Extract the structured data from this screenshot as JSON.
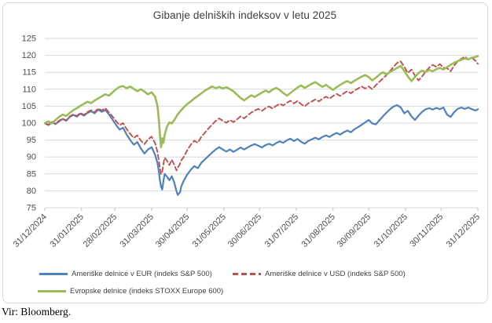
{
  "source_note": "Vir: Bloomberg.",
  "chart_data": {
    "type": "line",
    "title": "Gibanje delniških indeksov v letu 2025",
    "xlabel": "",
    "ylabel": "",
    "ylim": [
      75,
      125
    ],
    "y_ticks": [
      75,
      80,
      85,
      90,
      95,
      100,
      105,
      110,
      115,
      120,
      125
    ],
    "grid": "horizontal",
    "legend_position": "bottom",
    "x_unit": "days since 31/12/2024",
    "xlim_days": [
      0,
      365
    ],
    "x_tick_days": [
      0,
      31,
      59,
      90,
      120,
      151,
      181,
      212,
      243,
      273,
      304,
      334,
      365
    ],
    "x_tick_labels": [
      "31/12/2024",
      "31/01/2025",
      "28/02/2025",
      "31/03/2025",
      "30/04/2025",
      "31/05/2025",
      "30/06/2025",
      "31/07/2025",
      "31/08/2025",
      "30/09/2025",
      "31/10/2025",
      "30/11/2025",
      "31/12/2025"
    ],
    "base_value": 100,
    "days": [
      0,
      3,
      6,
      9,
      12,
      15,
      18,
      21,
      24,
      27,
      30,
      33,
      36,
      39,
      42,
      45,
      48,
      51,
      54,
      57,
      60,
      63,
      66,
      69,
      72,
      75,
      78,
      81,
      84,
      87,
      90,
      93,
      95,
      96,
      97,
      98,
      99,
      100,
      101,
      103,
      105,
      107,
      109,
      111,
      112,
      114,
      115,
      117,
      120,
      123,
      126,
      129,
      132,
      135,
      138,
      141,
      144,
      147,
      150,
      153,
      156,
      159,
      162,
      165,
      168,
      171,
      174,
      177,
      180,
      183,
      186,
      189,
      192,
      195,
      198,
      201,
      204,
      207,
      210,
      213,
      216,
      219,
      222,
      225,
      228,
      231,
      234,
      237,
      240,
      243,
      246,
      249,
      252,
      255,
      258,
      261,
      264,
      267,
      270,
      273,
      276,
      279,
      282,
      285,
      288,
      291,
      294,
      297,
      300,
      303,
      306,
      309,
      312,
      315,
      318,
      321,
      324,
      327,
      330,
      333,
      336,
      339,
      342,
      345,
      348,
      351,
      354,
      357,
      360,
      363,
      365
    ],
    "series": [
      {
        "name": "Ameriške delnice v EUR (indeks S&P 500)",
        "color": "#4F81BD",
        "style": "solid",
        "width": 2.2,
        "values": [
          100,
          99.4,
          100.3,
          99.7,
          100.5,
          101.2,
          100.7,
          101.8,
          102.4,
          101.9,
          102.8,
          102.2,
          103,
          103.5,
          102.9,
          104,
          103.3,
          103.9,
          102.6,
          101.1,
          99.5,
          98.1,
          98.6,
          96.6,
          95,
          93.6,
          94.4,
          92.5,
          91,
          92.2,
          92.9,
          90.6,
          88.2,
          86,
          83.2,
          81.2,
          80.4,
          83,
          85,
          84.2,
          83.1,
          84.3,
          82.6,
          79.9,
          78.8,
          79.6,
          81.3,
          82.9,
          84.8,
          86.2,
          87.3,
          86.7,
          88.3,
          89.3,
          90.3,
          91.3,
          92.2,
          92.9,
          92.2,
          91.6,
          92.2,
          91.5,
          92.1,
          92.8,
          92.2,
          92.8,
          93.4,
          93.8,
          93.3,
          92.8,
          93.5,
          93.9,
          93.4,
          94.1,
          94.6,
          94.2,
          94.9,
          95.4,
          94.7,
          95.3,
          94.5,
          93.9,
          94.7,
          95.2,
          95.7,
          95.2,
          95.9,
          96.4,
          95.9,
          96.6,
          97.1,
          96.6,
          97.3,
          97.8,
          97.3,
          98.2,
          98.8,
          99.5,
          100.2,
          100.9,
          99.9,
          99.6,
          100.8,
          102,
          103.1,
          104.1,
          104.9,
          105.3,
          104.6,
          102.9,
          103.6,
          102,
          100.9,
          102.2,
          103.3,
          104.1,
          104.4,
          104,
          104.5,
          104.1,
          104.6,
          102.5,
          101.8,
          103.2,
          104.2,
          104.6,
          104.2,
          104.6,
          104.1,
          103.7,
          104.1
        ]
      },
      {
        "name": "Ameriške delnice v USD (indeks S&P 500)",
        "color": "#C0504D",
        "style": "dashed",
        "width": 1.9,
        "values": [
          100,
          99.5,
          100.4,
          99.8,
          100.7,
          101.3,
          100.8,
          102,
          102.6,
          102.1,
          103,
          102.4,
          103.3,
          103.8,
          103.2,
          104.3,
          103.7,
          104.4,
          103.2,
          102,
          100.6,
          99.4,
          100,
          98.2,
          96.8,
          95.6,
          96.4,
          94.8,
          93.8,
          95.2,
          96,
          94,
          91.5,
          89.2,
          86.8,
          84.9,
          85.6,
          88,
          89.8,
          88.9,
          87.6,
          89.2,
          87.8,
          86,
          86.8,
          88,
          89,
          89.9,
          92,
          93.6,
          94.8,
          94.2,
          96,
          97.2,
          98.4,
          99.6,
          100.6,
          101.4,
          100.7,
          100.1,
          100.9,
          100.3,
          101.1,
          102,
          101.4,
          102.3,
          103.1,
          103.7,
          104.2,
          103.6,
          104.4,
          104.9,
          104.3,
          105.1,
          105.7,
          105.2,
          106,
          106.6,
          105.8,
          106.5,
          105.6,
          104.9,
          105.8,
          106.4,
          107,
          106.4,
          107.2,
          107.8,
          107.2,
          108,
          108.6,
          108,
          108.8,
          109.4,
          108.8,
          109.6,
          110.2,
          110.8,
          110.2,
          110.8,
          110,
          111.2,
          112.2,
          113.2,
          114.2,
          115.4,
          116.6,
          117.8,
          118.2,
          116.6,
          114.8,
          115.8,
          114,
          112.6,
          113.8,
          115.2,
          116.4,
          117.2,
          116.6,
          117.4,
          116.4,
          116.2,
          115.3,
          117,
          118.2,
          119,
          119.6,
          118.8,
          119.3,
          118.4,
          117.5
        ]
      },
      {
        "name": "Evropske delnice (indeks STOXX Europe 600)",
        "color": "#9BBB59",
        "style": "solid",
        "width": 2.6,
        "values": [
          100,
          100.5,
          99.9,
          100.9,
          101.8,
          102.5,
          102.1,
          103,
          103.8,
          104.4,
          105.1,
          105.7,
          106.3,
          105.9,
          106.7,
          107.3,
          107.9,
          108.5,
          108.1,
          109,
          110,
          110.7,
          110.9,
          110.3,
          110.8,
          110.1,
          109.4,
          110,
          109.3,
          108.5,
          109.1,
          107.8,
          105,
          101.5,
          97,
          92.8,
          95.5,
          94.2,
          96.5,
          99,
          100.2,
          99.9,
          100.8,
          102,
          102.6,
          103.4,
          103.8,
          104.6,
          105.6,
          106.4,
          107.3,
          108,
          108.8,
          109.6,
          110.2,
          110.8,
          110.3,
          110.7,
          110.2,
          110.6,
          110,
          109.4,
          108.4,
          107.4,
          106.7,
          107.5,
          108.2,
          107.7,
          108.4,
          109,
          109.6,
          109.1,
          109.9,
          110.4,
          109.8,
          108.9,
          108.1,
          108.9,
          109.7,
          110.5,
          111.1,
          110.4,
          111,
          111.6,
          112.1,
          111.4,
          110.7,
          111.3,
          110.5,
          109.8,
          110.6,
          111.3,
          111.9,
          112.4,
          111.8,
          112.5,
          113.1,
          113.7,
          114.2,
          113.6,
          112.6,
          113.4,
          114.3,
          115,
          114.4,
          115.1,
          115.7,
          116.3,
          116.9,
          115.4,
          113.8,
          112.4,
          113.6,
          114.8,
          115.5,
          115.1,
          115.7,
          115.3,
          115.9,
          116.3,
          115.8,
          116.5,
          117.2,
          117.8,
          118.3,
          118.7,
          119.1,
          118.8,
          119.3,
          119.5,
          119.8
        ]
      }
    ],
    "colors": {
      "grid": "#d9d9d9",
      "axis_tick": "#bfbfbf",
      "axis_text": "#4d4d4d",
      "title_text": "#3f3f3f"
    }
  }
}
